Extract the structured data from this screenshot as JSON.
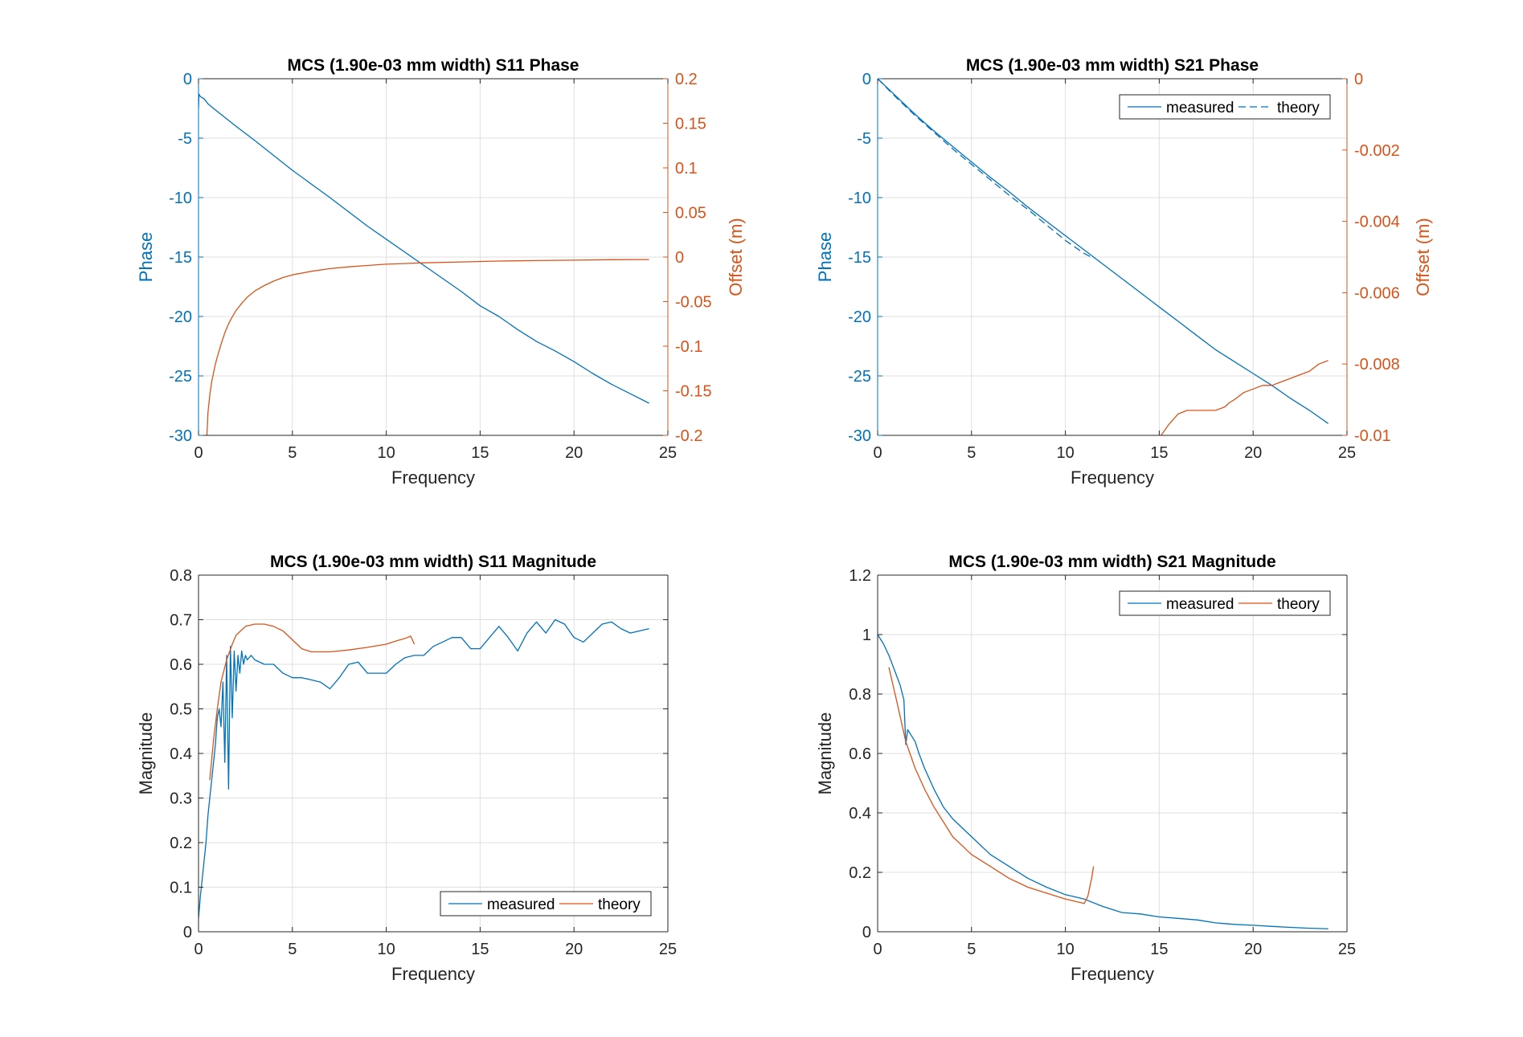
{
  "colors": {
    "blue": "#0072BD",
    "orange": "#D95319",
    "axis": "#262626",
    "grid": "#DFDFDF"
  },
  "chart_data": [
    {
      "id": "s11-phase",
      "type": "line",
      "title": "MCS (1.90e-03 mm width) S11 Phase",
      "xlabel": "Frequency",
      "ylabel": "Phase",
      "y2label": "Offset (m)",
      "xlim": [
        0,
        25
      ],
      "ylim": [
        -30,
        0
      ],
      "y2lim": [
        -0.2,
        0.2
      ],
      "xticks": [
        "0",
        "5",
        "10",
        "15",
        "20",
        "25"
      ],
      "yticks": [
        "-30",
        "-25",
        "-20",
        "-15",
        "-10",
        "-5",
        "0"
      ],
      "y2ticks": [
        "-0.2",
        "-0.15",
        "-0.1",
        "-0.05",
        "0",
        "0.05",
        "0.1",
        "0.15",
        "0.2"
      ],
      "grid": true,
      "legend": null,
      "series": [
        {
          "name": "",
          "axis": "left",
          "color": "#0072BD",
          "x": [
            0,
            0.02,
            0.1,
            0.2,
            0.3,
            0.5,
            0.8,
            1.2,
            2,
            3,
            5,
            7,
            9,
            10,
            11,
            12,
            13,
            14,
            15,
            16,
            17,
            18,
            19,
            20,
            21,
            22,
            23,
            24
          ],
          "y": [
            -2.5,
            -1.3,
            -1.5,
            -1.6,
            -1.7,
            -2.1,
            -2.5,
            -3.0,
            -4.0,
            -5.2,
            -7.7,
            -10.0,
            -12.4,
            -13.5,
            -14.6,
            -15.7,
            -16.8,
            -17.9,
            -19.1,
            -20.0,
            -21.1,
            -22.1,
            -22.9,
            -23.8,
            -24.8,
            -25.7,
            -26.5,
            -27.3
          ]
        },
        {
          "name": "",
          "axis": "right",
          "color": "#D95319",
          "x": [
            0.45,
            0.5,
            0.6,
            0.7,
            0.8,
            0.9,
            1.0,
            1.2,
            1.4,
            1.6,
            1.8,
            2.0,
            2.3,
            2.6,
            3.0,
            3.5,
            4.0,
            4.5,
            5,
            6,
            7,
            8,
            9,
            10,
            12,
            14,
            16,
            18,
            20,
            22,
            24
          ],
          "y": [
            -0.2,
            -0.175,
            -0.155,
            -0.14,
            -0.13,
            -0.12,
            -0.112,
            -0.098,
            -0.085,
            -0.075,
            -0.067,
            -0.06,
            -0.052,
            -0.045,
            -0.038,
            -0.032,
            -0.027,
            -0.023,
            -0.02,
            -0.016,
            -0.013,
            -0.011,
            -0.0095,
            -0.008,
            -0.0065,
            -0.0055,
            -0.0045,
            -0.004,
            -0.0035,
            -0.003,
            -0.0028
          ]
        }
      ]
    },
    {
      "id": "s21-phase",
      "type": "line",
      "title": "MCS (1.90e-03 mm width) S21 Phase",
      "xlabel": "Frequency",
      "ylabel": "Phase",
      "y2label": "Offset (m)",
      "xlim": [
        0,
        25
      ],
      "ylim": [
        -30,
        0
      ],
      "y2lim": [
        -0.01,
        0
      ],
      "xticks": [
        "0",
        "5",
        "10",
        "15",
        "20",
        "25"
      ],
      "yticks": [
        "-30",
        "-25",
        "-20",
        "-15",
        "-10",
        "-5",
        "0"
      ],
      "y2ticks": [
        "-0.01",
        "-0.008",
        "-0.006",
        "-0.004",
        "-0.002",
        "0"
      ],
      "grid": true,
      "legend": "top-right",
      "series": [
        {
          "name": "measured",
          "axis": "left",
          "color": "#0072BD",
          "dash": false,
          "x": [
            0,
            1,
            2,
            3,
            4,
            5,
            6,
            7,
            8,
            9,
            10,
            11,
            12,
            13,
            14,
            15,
            16,
            17,
            18,
            19,
            20,
            21,
            22,
            23,
            24
          ],
          "y": [
            0,
            -1.5,
            -3.0,
            -4.4,
            -5.7,
            -7.0,
            -8.3,
            -9.5,
            -10.8,
            -12.0,
            -13.2,
            -14.4,
            -15.6,
            -16.8,
            -18.0,
            -19.2,
            -20.4,
            -21.6,
            -22.8,
            -23.8,
            -24.8,
            -25.8,
            -26.9,
            -27.9,
            -29.0
          ]
        },
        {
          "name": "theory",
          "axis": "left",
          "color": "#0072BD",
          "dash": true,
          "x": [
            0,
            1,
            2,
            3,
            4,
            5,
            6,
            7,
            8,
            9,
            10,
            11,
            11.5
          ],
          "y": [
            0,
            -1.6,
            -3.1,
            -4.5,
            -5.9,
            -7.2,
            -8.5,
            -9.8,
            -11.0,
            -12.3,
            -13.6,
            -14.7,
            -15.1
          ]
        },
        {
          "name": "",
          "axis": "right",
          "color": "#D95319",
          "x": [
            15.1,
            15.5,
            16,
            16.5,
            17,
            17.5,
            18,
            18.5,
            18.7,
            19,
            19.5,
            20,
            20.5,
            21,
            21.5,
            22,
            22.5,
            23,
            23.5,
            24
          ],
          "y": [
            -0.01,
            -0.0097,
            -0.0094,
            -0.0093,
            -0.0093,
            -0.0093,
            -0.0093,
            -0.0092,
            -0.0091,
            -0.009,
            -0.0088,
            -0.0087,
            -0.0086,
            -0.0086,
            -0.0085,
            -0.0084,
            -0.0083,
            -0.0082,
            -0.008,
            -0.0079
          ]
        }
      ]
    },
    {
      "id": "s11-magnitude",
      "type": "line",
      "title": "MCS (1.90e-03 mm width) S11 Magnitude",
      "xlabel": "Frequency",
      "ylabel": "Magnitude",
      "xlim": [
        0,
        25
      ],
      "ylim": [
        0,
        0.8
      ],
      "xticks": [
        "0",
        "5",
        "10",
        "15",
        "20",
        "25"
      ],
      "yticks": [
        "0",
        "0.1",
        "0.2",
        "0.3",
        "0.4",
        "0.5",
        "0.6",
        "0.7",
        "0.8"
      ],
      "grid": true,
      "legend": "bottom-right",
      "series": [
        {
          "name": "measured",
          "color": "#0072BD",
          "x": [
            0,
            0.1,
            0.2,
            0.3,
            0.4,
            0.5,
            0.6,
            0.7,
            0.8,
            0.9,
            1.0,
            1.1,
            1.2,
            1.3,
            1.4,
            1.5,
            1.6,
            1.7,
            1.8,
            1.9,
            2.0,
            2.1,
            2.2,
            2.3,
            2.4,
            2.5,
            2.6,
            2.8,
            3.0,
            3.5,
            4,
            4.5,
            5,
            5.5,
            6,
            6.5,
            7,
            7.5,
            8,
            8.5,
            9,
            9.5,
            10,
            10.5,
            11,
            11.5,
            12,
            12.5,
            13,
            13.5,
            14,
            14.5,
            15,
            15.5,
            16,
            16.5,
            17,
            17.5,
            18,
            18.5,
            19,
            19.5,
            20,
            20.5,
            21,
            21.5,
            22,
            22.5,
            23,
            23.5,
            24
          ],
          "y": [
            0.03,
            0.08,
            0.12,
            0.16,
            0.2,
            0.26,
            0.3,
            0.34,
            0.38,
            0.42,
            0.48,
            0.5,
            0.46,
            0.56,
            0.38,
            0.62,
            0.32,
            0.64,
            0.48,
            0.63,
            0.54,
            0.62,
            0.58,
            0.63,
            0.6,
            0.62,
            0.61,
            0.62,
            0.61,
            0.6,
            0.6,
            0.58,
            0.57,
            0.57,
            0.565,
            0.56,
            0.545,
            0.57,
            0.6,
            0.605,
            0.58,
            0.58,
            0.58,
            0.6,
            0.615,
            0.62,
            0.62,
            0.64,
            0.65,
            0.66,
            0.66,
            0.635,
            0.635,
            0.66,
            0.685,
            0.66,
            0.63,
            0.67,
            0.695,
            0.67,
            0.7,
            0.69,
            0.66,
            0.65,
            0.67,
            0.69,
            0.695,
            0.68,
            0.67,
            0.675,
            0.68
          ]
        },
        {
          "name": "theory",
          "color": "#D95319",
          "x": [
            0.6,
            0.8,
            1.0,
            1.2,
            1.5,
            1.8,
            2.0,
            2.5,
            3.0,
            3.5,
            4.0,
            4.5,
            5.0,
            5.5,
            6.0,
            7.0,
            8.0,
            9.0,
            10.0,
            10.5,
            11.0,
            11.3,
            11.5
          ],
          "y": [
            0.34,
            0.43,
            0.5,
            0.56,
            0.61,
            0.645,
            0.665,
            0.685,
            0.69,
            0.69,
            0.685,
            0.675,
            0.655,
            0.635,
            0.628,
            0.628,
            0.632,
            0.638,
            0.645,
            0.652,
            0.658,
            0.663,
            0.645
          ]
        }
      ]
    },
    {
      "id": "s21-magnitude",
      "type": "line",
      "title": "MCS (1.90e-03 mm width) S21 Magnitude",
      "xlabel": "Frequency",
      "ylabel": "Magnitude",
      "xlim": [
        0,
        25
      ],
      "ylim": [
        0,
        1.2
      ],
      "xticks": [
        "0",
        "5",
        "10",
        "15",
        "20",
        "25"
      ],
      "yticks": [
        "0",
        "0.2",
        "0.4",
        "0.6",
        "0.8",
        "1",
        "1.2"
      ],
      "grid": true,
      "legend": "top-right",
      "series": [
        {
          "name": "measured",
          "color": "#0072BD",
          "x": [
            0,
            0.3,
            0.6,
            0.9,
            1.2,
            1.4,
            1.5,
            1.6,
            1.8,
            2.0,
            2.2,
            2.5,
            3,
            3.5,
            4,
            5,
            6,
            7,
            8,
            9,
            10,
            11,
            12,
            13,
            14,
            15,
            16,
            17,
            18,
            19,
            20,
            21,
            22,
            23,
            24
          ],
          "y": [
            1.0,
            0.97,
            0.93,
            0.88,
            0.83,
            0.78,
            0.63,
            0.68,
            0.66,
            0.64,
            0.6,
            0.55,
            0.48,
            0.42,
            0.38,
            0.32,
            0.26,
            0.22,
            0.18,
            0.15,
            0.125,
            0.11,
            0.085,
            0.065,
            0.06,
            0.05,
            0.045,
            0.04,
            0.03,
            0.025,
            0.022,
            0.018,
            0.015,
            0.012,
            0.01
          ]
        },
        {
          "name": "theory",
          "color": "#D95319",
          "x": [
            0.6,
            1.0,
            1.5,
            2.0,
            2.5,
            3.0,
            3.5,
            4.0,
            4.5,
            5.0,
            6,
            7,
            8,
            9,
            10,
            11.0,
            11.2,
            11.4,
            11.5
          ],
          "y": [
            0.89,
            0.78,
            0.64,
            0.55,
            0.48,
            0.42,
            0.37,
            0.32,
            0.29,
            0.26,
            0.22,
            0.18,
            0.15,
            0.13,
            0.11,
            0.095,
            0.12,
            0.18,
            0.22
          ]
        }
      ]
    }
  ]
}
